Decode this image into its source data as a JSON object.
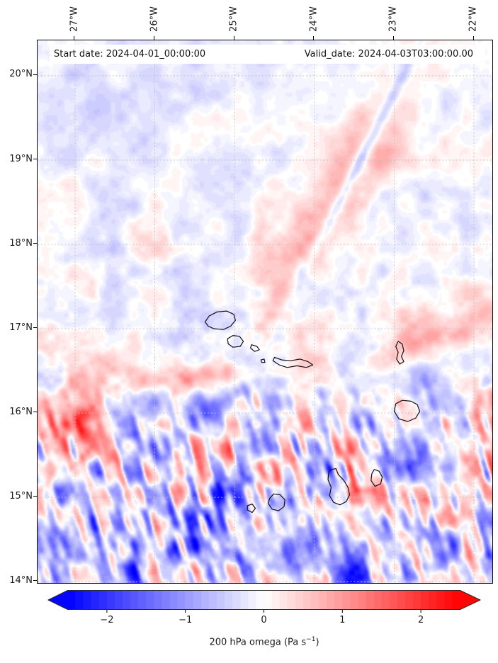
{
  "figure": {
    "title_left": "Start date: 2024-04-01_00:00:00",
    "title_right": "Valid_date: 2024-04-03T03:00:00.00"
  },
  "axes": {
    "lon_ticks": [
      {
        "label": "27°W",
        "lon": -27
      },
      {
        "label": "26°W",
        "lon": -26
      },
      {
        "label": "25°W",
        "lon": -25
      },
      {
        "label": "24°W",
        "lon": -24
      },
      {
        "label": "23°W",
        "lon": -23
      },
      {
        "label": "22°W",
        "lon": -22
      }
    ],
    "lat_ticks": [
      {
        "label": "20°N",
        "lat": 20
      },
      {
        "label": "19°N",
        "lat": 19
      },
      {
        "label": "18°N",
        "lat": 18
      },
      {
        "label": "17°N",
        "lat": 17
      },
      {
        "label": "16°N",
        "lat": 16
      },
      {
        "label": "15°N",
        "lat": 15
      },
      {
        "label": "14°N",
        "lat": 14
      }
    ],
    "grid_color": "#c2c2c2",
    "spine_color": "#000000"
  },
  "colorbar": {
    "ticks": [
      {
        "label": "−2",
        "value": -2
      },
      {
        "label": "−1",
        "value": -1
      },
      {
        "label": "0",
        "value": 0
      },
      {
        "label": "1",
        "value": 1
      },
      {
        "label": "2",
        "value": 2
      }
    ],
    "label_prefix": "200 hPa omega (Pa s",
    "label_sup": "−1",
    "label_suffix": ")",
    "cmap": "bwr",
    "vmin": -2.5,
    "vmax": 2.5,
    "step": 0.1,
    "extend": "both",
    "edge_color": "#2b2b2b"
  },
  "chart_data": {
    "type": "heatmap",
    "title": "200 hPa omega forecast field over the Cape Verde islands",
    "variable": "200 hPa omega (Pa s−1)",
    "start_date": "2024-04-01_00:00:00",
    "valid_date": "2024-04-03T03:00:00.00",
    "lon_range": [
      -27.47,
      -21.77
    ],
    "lat_range": [
      13.98,
      20.42
    ],
    "value_range": [
      -2.5,
      2.5
    ],
    "colormap": "bwr (blue = negative/ascent, red = positive/descent)",
    "grid_interval_deg": 1,
    "field": {
      "seed": 7,
      "bias_by_lat": [
        [
          20.42,
          -0.04
        ],
        [
          19.0,
          0.0
        ],
        [
          17.5,
          0.03
        ],
        [
          16.3,
          -0.05
        ],
        [
          15.6,
          -0.22
        ],
        [
          14.6,
          -0.25
        ],
        [
          13.98,
          -0.18
        ]
      ],
      "amp_by_lat": [
        [
          20.42,
          0.42
        ],
        [
          19.2,
          0.48
        ],
        [
          18.2,
          0.55
        ],
        [
          17.2,
          0.7
        ],
        [
          16.6,
          0.9
        ],
        [
          16.1,
          1.2
        ],
        [
          15.7,
          1.5
        ],
        [
          15.1,
          1.55
        ],
        [
          14.5,
          1.45
        ],
        [
          13.98,
          1.4
        ]
      ],
      "octaves": [
        {
          "scale_deg": 0.5,
          "amp": 0.5
        },
        {
          "scale_deg": 0.26,
          "amp": 0.42
        },
        {
          "scale_deg": 0.13,
          "amp": 0.3
        },
        {
          "scale_deg": 0.065,
          "amp": 0.14
        }
      ],
      "gravity_wave_streaks": {
        "amp": 1.3,
        "lat_zero": 16.45,
        "lat_full": 15.85,
        "scale_x_deg": 0.085,
        "scale_y_deg": 0.3,
        "tilt": 0.3,
        "patch_scale_deg": 0.7
      },
      "features": [
        {
          "name": "blue-filament-upper-right",
          "lon": -23.46,
          "lat": 18.93,
          "sx": 1.05,
          "sy": 0.05,
          "rot": 62,
          "amp": -0.85
        },
        {
          "name": "red-band-upper-right-west",
          "lon": -23.75,
          "lat": 18.75,
          "sx": 0.95,
          "sy": 0.22,
          "rot": 62,
          "amp": 0.75
        },
        {
          "name": "red-band-upper-right-east",
          "lon": -23.15,
          "lat": 19.0,
          "sx": 0.8,
          "sy": 0.12,
          "rot": 62,
          "amp": 0.5
        },
        {
          "name": "red-streak-near-sal",
          "lon": -22.35,
          "lat": 16.95,
          "sx": 0.75,
          "sy": 0.12,
          "rot": 20,
          "amp": 0.7
        },
        {
          "name": "red-cluster-west",
          "lon": -26.95,
          "lat": 15.9,
          "sx": 0.3,
          "sy": 0.25,
          "rot": 0,
          "amp": 1.1
        },
        {
          "name": "red-band-mid-islands",
          "lon": -25.45,
          "lat": 16.42,
          "sx": 0.55,
          "sy": 0.1,
          "rot": 5,
          "amp": 1.0
        },
        {
          "name": "blue-diagonal-mid",
          "lon": -25.25,
          "lat": 16.05,
          "sx": 0.5,
          "sy": 0.1,
          "rot": 35,
          "amp": -1.1
        },
        {
          "name": "blue-wash-south",
          "lon": -24.5,
          "lat": 14.35,
          "sx": 1.6,
          "sy": 0.3,
          "rot": 0,
          "amp": -0.55
        },
        {
          "name": "pale-blue-northwest",
          "lon": -26.2,
          "lat": 19.8,
          "sx": 1.4,
          "sy": 0.5,
          "rot": 10,
          "amp": -0.3
        }
      ]
    },
    "islands": [
      {
        "name": "Santo Antão",
        "outline": [
          [
            -25.37,
            17.08
          ],
          [
            -25.32,
            17.15
          ],
          [
            -25.22,
            17.2
          ],
          [
            -25.1,
            17.21
          ],
          [
            -25.01,
            17.17
          ],
          [
            -24.99,
            17.1
          ],
          [
            -25.05,
            17.03
          ],
          [
            -25.14,
            16.99
          ],
          [
            -25.26,
            17.0
          ],
          [
            -25.33,
            17.03
          ]
        ]
      },
      {
        "name": "São Vicente",
        "outline": [
          [
            -25.09,
            16.88
          ],
          [
            -25.02,
            16.92
          ],
          [
            -24.94,
            16.91
          ],
          [
            -24.89,
            16.85
          ],
          [
            -24.93,
            16.79
          ],
          [
            -25.02,
            16.78
          ],
          [
            -25.08,
            16.82
          ]
        ]
      },
      {
        "name": "Santa Luzia",
        "outline": [
          [
            -24.79,
            16.81
          ],
          [
            -24.72,
            16.79
          ],
          [
            -24.69,
            16.75
          ],
          [
            -24.75,
            16.73
          ],
          [
            -24.8,
            16.77
          ]
        ]
      },
      {
        "name": "Branco",
        "outline": [
          [
            -24.67,
            16.63
          ],
          [
            -24.63,
            16.64
          ],
          [
            -24.62,
            16.6
          ],
          [
            -24.66,
            16.6
          ]
        ]
      },
      {
        "name": "São Nicolau",
        "outline": [
          [
            -24.5,
            16.66
          ],
          [
            -24.41,
            16.63
          ],
          [
            -24.3,
            16.62
          ],
          [
            -24.18,
            16.64
          ],
          [
            -24.08,
            16.61
          ],
          [
            -24.02,
            16.57
          ],
          [
            -24.1,
            16.54
          ],
          [
            -24.22,
            16.56
          ],
          [
            -24.34,
            16.54
          ],
          [
            -24.44,
            16.57
          ],
          [
            -24.52,
            16.62
          ]
        ]
      },
      {
        "name": "Sal",
        "outline": [
          [
            -22.95,
            16.85
          ],
          [
            -22.9,
            16.82
          ],
          [
            -22.88,
            16.74
          ],
          [
            -22.91,
            16.67
          ],
          [
            -22.88,
            16.61
          ],
          [
            -22.93,
            16.58
          ],
          [
            -22.97,
            16.64
          ],
          [
            -22.95,
            16.72
          ],
          [
            -22.98,
            16.79
          ]
        ]
      },
      {
        "name": "Boa Vista",
        "outline": [
          [
            -22.98,
            16.11
          ],
          [
            -22.9,
            16.15
          ],
          [
            -22.79,
            16.14
          ],
          [
            -22.71,
            16.1
          ],
          [
            -22.68,
            16.02
          ],
          [
            -22.73,
            15.94
          ],
          [
            -22.83,
            15.9
          ],
          [
            -22.94,
            15.93
          ],
          [
            -23.0,
            16.02
          ]
        ]
      },
      {
        "name": "Maio",
        "outline": [
          [
            -23.25,
            15.33
          ],
          [
            -23.19,
            15.31
          ],
          [
            -23.15,
            15.24
          ],
          [
            -23.17,
            15.16
          ],
          [
            -23.24,
            15.13
          ],
          [
            -23.29,
            15.2
          ],
          [
            -23.28,
            15.28
          ]
        ]
      },
      {
        "name": "Santiago",
        "outline": [
          [
            -23.79,
            15.33
          ],
          [
            -23.73,
            15.34
          ],
          [
            -23.7,
            15.27
          ],
          [
            -23.63,
            15.2
          ],
          [
            -23.58,
            15.12
          ],
          [
            -23.56,
            15.03
          ],
          [
            -23.6,
            14.95
          ],
          [
            -23.68,
            14.91
          ],
          [
            -23.76,
            14.94
          ],
          [
            -23.81,
            15.02
          ],
          [
            -23.79,
            15.12
          ],
          [
            -23.83,
            15.21
          ],
          [
            -23.82,
            15.3
          ]
        ]
      },
      {
        "name": "Fogo",
        "outline": [
          [
            -24.56,
            14.99
          ],
          [
            -24.51,
            15.04
          ],
          [
            -24.43,
            15.03
          ],
          [
            -24.37,
            14.97
          ],
          [
            -24.38,
            14.89
          ],
          [
            -24.45,
            14.84
          ],
          [
            -24.53,
            14.86
          ],
          [
            -24.58,
            14.93
          ]
        ]
      },
      {
        "name": "Brava",
        "outline": [
          [
            -24.84,
            14.9
          ],
          [
            -24.78,
            14.92
          ],
          [
            -24.74,
            14.87
          ],
          [
            -24.78,
            14.82
          ],
          [
            -24.84,
            14.85
          ]
        ]
      }
    ]
  }
}
